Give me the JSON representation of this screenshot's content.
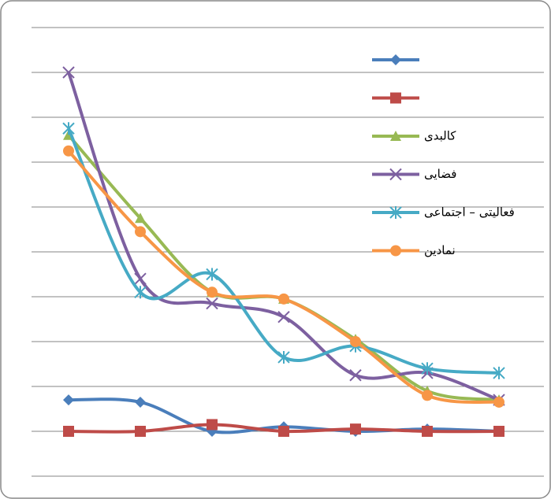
{
  "chart_data": {
    "type": "line",
    "categories": [
      null,
      null,
      null,
      null,
      null,
      null,
      null
    ],
    "ylim": [
      0,
      10
    ],
    "yticks": [
      0,
      1,
      2,
      3,
      4,
      5,
      6,
      7,
      8,
      9,
      10
    ],
    "grid": true,
    "series": [
      {
        "color": "#4a7ebb",
        "marker": "diamond",
        "values": [
          1.7,
          1.65,
          1.0,
          1.1,
          1.0,
          1.05,
          1.0
        ]
      },
      {
        "color": "#be4b48",
        "marker": "square",
        "values": [
          1.0,
          1.0,
          1.15,
          1.0,
          1.05,
          1.0,
          1.0
        ]
      },
      {
        "name": "کالبدی",
        "color": "#98b954",
        "marker": "triangle",
        "values": [
          7.6,
          5.75,
          4.1,
          3.95,
          3.05,
          1.9,
          1.7
        ]
      },
      {
        "name": "فضایی",
        "color": "#7d60a0",
        "marker": "x",
        "values": [
          9.0,
          4.4,
          3.85,
          3.55,
          2.25,
          2.3,
          1.7
        ]
      },
      {
        "name": "فعالیتی – اجتماعی",
        "color": "#46aac5",
        "marker": "star",
        "values": [
          7.75,
          4.1,
          4.5,
          2.65,
          2.9,
          2.4,
          2.3
        ]
      },
      {
        "name": "نمادین",
        "color": "#f79646",
        "marker": "circle",
        "values": [
          7.25,
          5.45,
          4.1,
          3.95,
          3.0,
          1.8,
          1.65
        ]
      }
    ]
  }
}
